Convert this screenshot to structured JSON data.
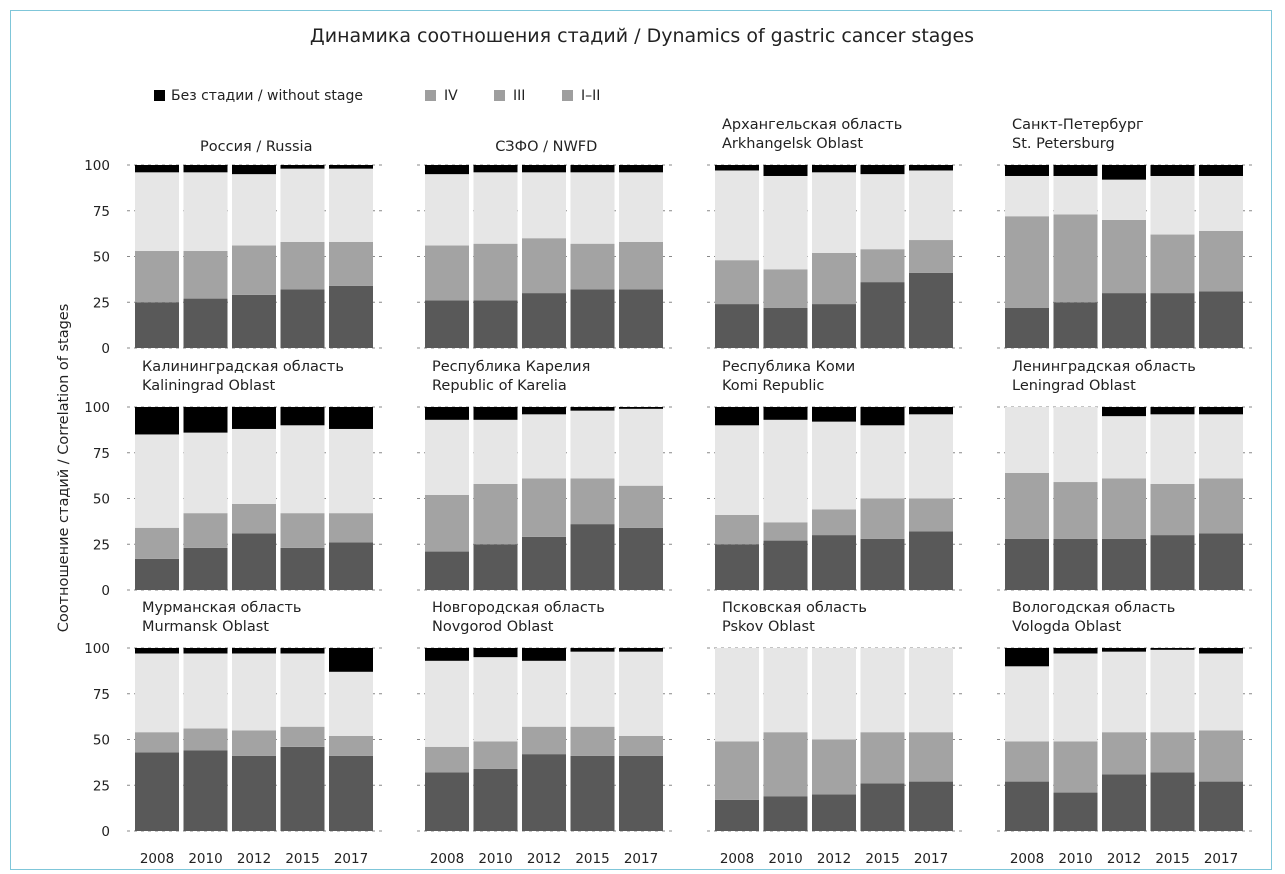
{
  "chart_data": {
    "type": "bar",
    "stacked": true,
    "title": "Динамика соотношения стадий / Dynamics of gastric cancer stages",
    "ylabel": "Соотношение стадий / Correlation of stages",
    "ylim": [
      0,
      100
    ],
    "yticks": [
      "0",
      "25",
      "50",
      "75",
      "100"
    ],
    "categories": [
      "2008",
      "2010",
      "2012",
      "2015",
      "2017"
    ],
    "grid": "horizontal dashed",
    "legend_position": "top-left",
    "legend": [
      {
        "label": "Без стадии / without stage",
        "color": "#000000"
      },
      {
        "label": "IV",
        "color": "#9e9e9e"
      },
      {
        "label": "III",
        "color": "#9e9e9e"
      },
      {
        "label": "I–II",
        "color": "#9e9e9e"
      }
    ],
    "stack_order": [
      "I–II",
      "III",
      "IV",
      "Без стадии / without stage"
    ],
    "stack_colors": [
      "#595959",
      "#a3a3a3",
      "#e6e6e6",
      "#000000"
    ],
    "panels": [
      {
        "title_lines": [
          "Россия / Russia"
        ],
        "stages": {
          "I–II": [
            25,
            27,
            29,
            32,
            34
          ],
          "III": [
            28,
            26,
            27,
            26,
            24
          ],
          "IV": [
            43,
            43,
            39,
            40,
            40
          ],
          "Без стадии / without stage": [
            4,
            4,
            5,
            2,
            2
          ]
        }
      },
      {
        "title_lines": [
          "СЗФО / NWFD"
        ],
        "stages": {
          "I–II": [
            26,
            26,
            30,
            32,
            32
          ],
          "III": [
            30,
            31,
            30,
            25,
            26
          ],
          "IV": [
            39,
            39,
            36,
            39,
            38
          ],
          "Без стадии / without stage": [
            5,
            4,
            4,
            4,
            4
          ]
        }
      },
      {
        "title_lines": [
          "Архангельская область",
          "Arkhangelsk Oblast"
        ],
        "stages": {
          "I–II": [
            24,
            22,
            24,
            36,
            41
          ],
          "III": [
            24,
            21,
            28,
            18,
            18
          ],
          "IV": [
            49,
            51,
            44,
            41,
            38
          ],
          "Без стадии / without stage": [
            3,
            6,
            4,
            5,
            3
          ]
        }
      },
      {
        "title_lines": [
          "Санкт-Петербург",
          "St. Petersburg"
        ],
        "stages": {
          "I–II": [
            22,
            25,
            30,
            30,
            31
          ],
          "III": [
            50,
            48,
            40,
            32,
            33
          ],
          "IV": [
            22,
            21,
            22,
            32,
            30
          ],
          "Без стадии / without stage": [
            6,
            6,
            8,
            6,
            6
          ]
        }
      },
      {
        "title_lines": [
          "Калининградская область",
          "Kaliningrad Oblast"
        ],
        "stages": {
          "I–II": [
            17,
            23,
            31,
            23,
            26
          ],
          "III": [
            17,
            19,
            16,
            19,
            16
          ],
          "IV": [
            51,
            44,
            41,
            48,
            46
          ],
          "Без стадии / without stage": [
            15,
            14,
            12,
            10,
            12
          ]
        }
      },
      {
        "title_lines": [
          "Республика Карелия",
          "Republic of Karelia"
        ],
        "stages": {
          "I–II": [
            21,
            25,
            29,
            36,
            34
          ],
          "III": [
            31,
            33,
            32,
            25,
            23
          ],
          "IV": [
            41,
            35,
            35,
            37,
            42
          ],
          "Без стадии / without stage": [
            7,
            7,
            4,
            2,
            1
          ]
        }
      },
      {
        "title_lines": [
          "Республика Коми",
          "Komi Republic"
        ],
        "stages": {
          "I–II": [
            25,
            27,
            30,
            28,
            32
          ],
          "III": [
            16,
            10,
            14,
            22,
            18
          ],
          "IV": [
            49,
            56,
            48,
            40,
            46
          ],
          "Без стадии / without stage": [
            10,
            7,
            8,
            10,
            4
          ]
        }
      },
      {
        "title_lines": [
          "Ленинградская область",
          "Leningrad Oblast"
        ],
        "stages": {
          "I–II": [
            28,
            28,
            28,
            30,
            31
          ],
          "III": [
            36,
            31,
            33,
            28,
            30
          ],
          "IV": [
            36,
            41,
            34,
            38,
            35
          ],
          "Без стадии / without stage": [
            0,
            0,
            5,
            4,
            4
          ]
        }
      },
      {
        "title_lines": [
          "Мурманская область",
          "Murmansk Oblast"
        ],
        "stages": {
          "I–II": [
            43,
            44,
            41,
            46,
            41
          ],
          "III": [
            11,
            12,
            14,
            11,
            11
          ],
          "IV": [
            43,
            41,
            42,
            40,
            35
          ],
          "Без стадии / without stage": [
            3,
            3,
            3,
            3,
            13
          ]
        }
      },
      {
        "title_lines": [
          "Новгородская область",
          "Novgorod Oblast"
        ],
        "stages": {
          "I–II": [
            32,
            34,
            42,
            41,
            41
          ],
          "III": [
            14,
            15,
            15,
            16,
            11
          ],
          "IV": [
            47,
            46,
            36,
            41,
            46
          ],
          "Без стадии / without stage": [
            7,
            5,
            7,
            2,
            2
          ]
        }
      },
      {
        "title_lines": [
          "Псковская область",
          "Pskov Oblast"
        ],
        "stages": {
          "I–II": [
            17,
            19,
            20,
            26,
            27
          ],
          "III": [
            32,
            35,
            30,
            28,
            27
          ],
          "IV": [
            51,
            46,
            50,
            46,
            46
          ],
          "Без стадии / without stage": [
            0,
            0,
            0,
            0,
            0
          ]
        }
      },
      {
        "title_lines": [
          "Вологодская область",
          "Vologda Oblast"
        ],
        "stages": {
          "I–II": [
            27,
            21,
            31,
            32,
            27
          ],
          "III": [
            22,
            28,
            23,
            22,
            28
          ],
          "IV": [
            41,
            48,
            44,
            45,
            42
          ],
          "Без стадии / without stage": [
            10,
            3,
            2,
            1,
            3
          ]
        }
      }
    ]
  }
}
